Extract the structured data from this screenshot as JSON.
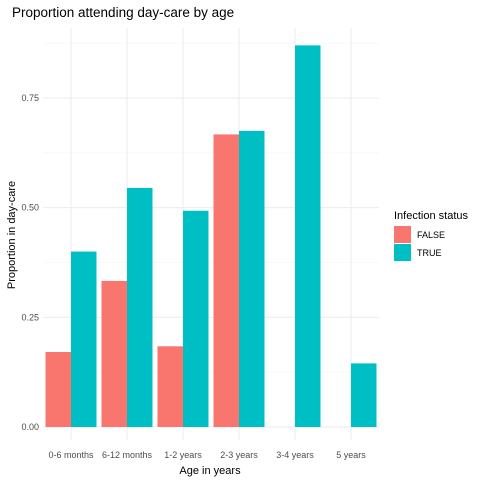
{
  "chart_data": {
    "type": "bar",
    "title": "Proportion attending day-care by age",
    "xlabel": "Age in years",
    "ylabel": "Proportion in day-care",
    "categories": [
      "0-6 months",
      "6-12 months",
      "1-2 years",
      "2-3 years",
      "3-4 years",
      "5 years"
    ],
    "series": [
      {
        "name": "FALSE",
        "color": "#F8766D",
        "values": [
          0.171,
          0.333,
          0.184,
          0.667,
          null,
          null
        ]
      },
      {
        "name": "TRUE",
        "color": "#00BFC4",
        "values": [
          0.4,
          0.545,
          0.493,
          0.675,
          0.87,
          0.145
        ]
      }
    ],
    "ylim": [
      0,
      0.9
    ],
    "yticks": [
      0.0,
      0.25,
      0.5,
      0.75
    ],
    "ytick_labels": [
      "0.00",
      "0.25",
      "0.50",
      "0.75"
    ],
    "grid": true,
    "legend": {
      "title": "Infection status",
      "position": "right"
    }
  }
}
